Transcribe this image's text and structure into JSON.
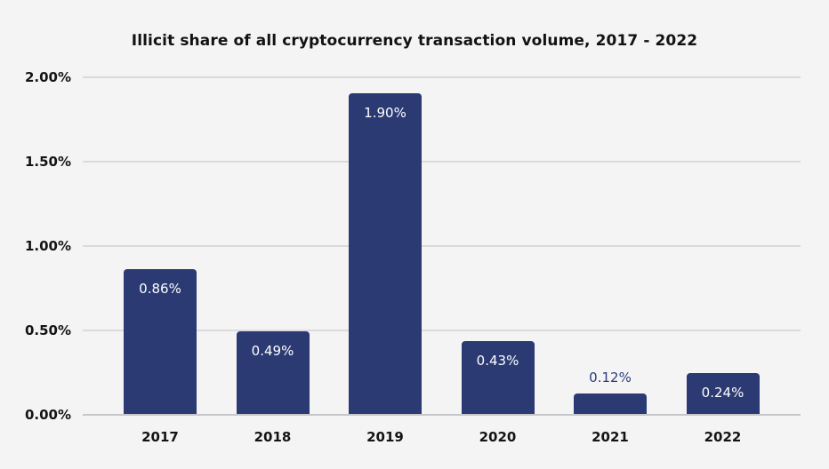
{
  "chart_data": {
    "type": "bar",
    "title": "Illicit share of all cryptocurrency transaction volume, 2017 - 2022",
    "categories": [
      "2017",
      "2018",
      "2019",
      "2020",
      "2021",
      "2022"
    ],
    "values": [
      0.86,
      0.49,
      1.9,
      0.43,
      0.12,
      0.24
    ],
    "bar_labels": [
      "0.86%",
      "0.49%",
      "1.90%",
      "0.43%",
      "0.12%",
      "0.24%"
    ],
    "y_ticks": [
      {
        "value": 2.0,
        "label": "2.00%"
      },
      {
        "value": 1.5,
        "label": "1.50%"
      },
      {
        "value": 1.0,
        "label": "1.00%"
      },
      {
        "value": 0.5,
        "label": "0.50%"
      },
      {
        "value": 0.0,
        "label": "0.00%"
      }
    ],
    "ylim": [
      0,
      2.0
    ],
    "xlabel": "",
    "ylabel": "",
    "grid": true,
    "legend": "none",
    "colors": {
      "background": "#f5f4f5",
      "bar": "#2b3a73",
      "bar_label_inside": "#ffffff",
      "bar_label_above": "#2b3d7c",
      "gridline": "#dadadc",
      "baseline": "#c7c7cb",
      "title_text": "#121212",
      "axis_text": "#141414"
    }
  }
}
